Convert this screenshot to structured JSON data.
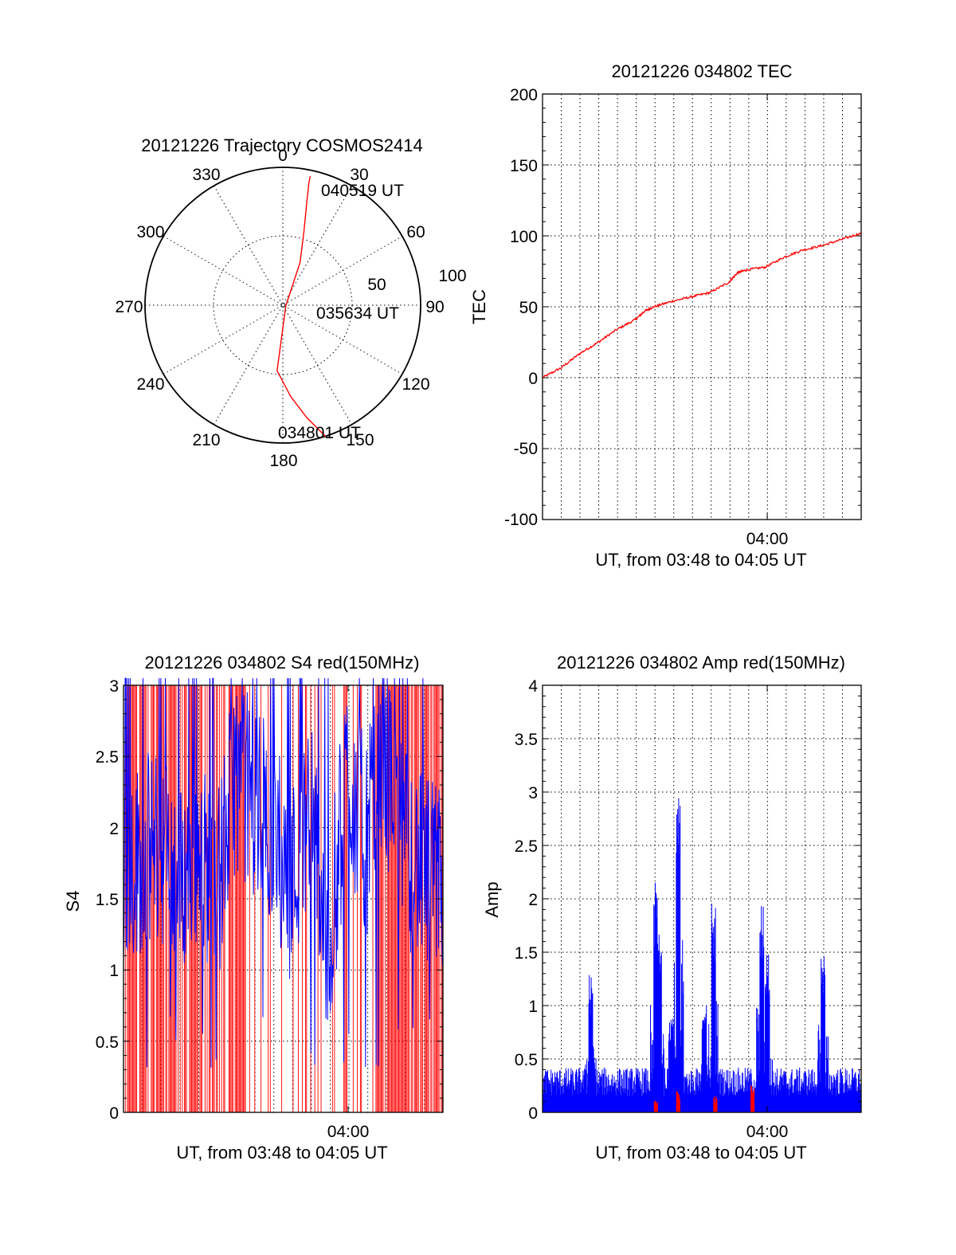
{
  "polar": {
    "title": "20121226 Trajectory COSMOS2414",
    "azimuth_labels": [
      "0",
      "30",
      "60",
      "90",
      "120",
      "150",
      "180",
      "210",
      "240",
      "270",
      "300",
      "330"
    ],
    "radial_labels": [
      "50",
      "100"
    ],
    "trajectory": {
      "color": "#ff0000",
      "points": [
        {
          "az": 162,
          "el": 0,
          "label": "034801 UT"
        },
        {
          "az": 168,
          "el": 15
        },
        {
          "az": 175,
          "el": 30
        },
        {
          "az": 185,
          "el": 47
        },
        {
          "az": 100,
          "el": 88,
          "label": "035634 UT"
        },
        {
          "az": 22,
          "el": 60
        },
        {
          "az": 16,
          "el": 40
        },
        {
          "az": 13,
          "el": 20
        },
        {
          "az": 12,
          "el": 8
        },
        {
          "az": 12,
          "el": 4,
          "label": "040519 UT"
        }
      ]
    }
  },
  "tec": {
    "title": "20121226 034802 TEC",
    "ylabel": "TEC",
    "xlabel": "UT, from 03:48 to 04:05 UT",
    "xtick_label": "04:00",
    "yticks": [
      "-100",
      "-50",
      "0",
      "50",
      "100",
      "150",
      "200"
    ]
  },
  "s4": {
    "title": "20121226 034802 S4 red(150MHz)",
    "ylabel": "S4",
    "xlabel": "UT, from 03:48 to 04:05 UT",
    "xtick_label": "04:00",
    "yticks": [
      "0",
      "0.5",
      "1",
      "1.5",
      "2",
      "2.5",
      "3"
    ]
  },
  "amp": {
    "title": "20121226 034802 Amp red(150MHz)",
    "ylabel": "Amp",
    "xlabel": "UT, from 03:48 to 04:05 UT",
    "xtick_label": "04:00",
    "yticks": [
      "0",
      "0.5",
      "1",
      "1.5",
      "2",
      "2.5",
      "3",
      "3.5",
      "4"
    ]
  },
  "chart_data": [
    {
      "type": "scatter",
      "subtype": "polar-sky-plot",
      "title": "20121226 Trajectory COSMOS2414",
      "coordinates": "azimuth (deg, clockwise from north) / elevation (deg)",
      "series": [
        {
          "color": "#ff0000",
          "azimuth": [
            162,
            168,
            175,
            185,
            100,
            22,
            16,
            13,
            12,
            12
          ],
          "elevation": [
            0,
            15,
            30,
            47,
            88,
            60,
            40,
            20,
            8,
            4
          ],
          "annotations": [
            "034801 UT",
            "035634 UT",
            "040519 UT"
          ]
        }
      ]
    },
    {
      "type": "line",
      "title": "20121226 034802 TEC",
      "xlabel": "UT, from 03:48 to 04:05 UT",
      "ylabel": "TEC",
      "x_unit": "minutes after 03:48 UT",
      "xlim": [
        0,
        17.15
      ],
      "ylim": [
        -100,
        200
      ],
      "xtick_label": "04:00",
      "grid": true,
      "series": [
        {
          "color": "#ff0000",
          "x": [
            0,
            1,
            2,
            3,
            4,
            5,
            5.5,
            6,
            7,
            8,
            9,
            10,
            10.5,
            11,
            12,
            13,
            14,
            15,
            16,
            17.15
          ],
          "values": [
            0,
            7,
            17,
            25,
            34,
            41,
            47,
            50,
            54,
            57,
            60,
            67,
            74,
            76,
            78,
            85,
            90,
            93,
            97,
            102
          ]
        }
      ]
    },
    {
      "type": "line",
      "title": "20121226 034802 S4 red(150MHz)",
      "xlabel": "UT, from 03:48 to 04:05 UT",
      "ylabel": "S4",
      "xlim": [
        0,
        17.15
      ],
      "ylim": [
        0,
        3
      ],
      "xtick_label": "04:00",
      "grid": true,
      "series": [
        {
          "color": "#0000ff",
          "x": [
            0,
            1,
            2,
            3,
            4,
            5,
            6,
            7,
            8,
            9,
            10,
            11,
            12,
            13,
            14,
            15,
            16,
            17
          ],
          "values": [
            1.7,
            1.8,
            1.9,
            1.6,
            1.9,
            1.5,
            2.4,
            2.2,
            2.0,
            1.6,
            2.2,
            1.1,
            2.4,
            1.9,
            2.5,
            1.9,
            1.7,
            1.6
          ]
        },
        {
          "color": "#ff0000",
          "note": "dense vertical strokes spanning 0 to 3"
        }
      ]
    },
    {
      "type": "line",
      "title": "20121226 034802 Amp red(150MHz)",
      "xlabel": "UT, from 03:48 to 04:05 UT",
      "ylabel": "Amp",
      "xlim": [
        0,
        17.15
      ],
      "ylim": [
        0,
        4
      ],
      "xtick_label": "04:00",
      "grid": true,
      "series": [
        {
          "color": "#0000ff",
          "peaks": [
            {
              "x": 2.6,
              "y": 1.3
            },
            {
              "x": 6.1,
              "y": 2.15
            },
            {
              "x": 6.3,
              "y": 1.7
            },
            {
              "x": 6.9,
              "y": 0.95
            },
            {
              "x": 7.3,
              "y": 2.95
            },
            {
              "x": 8.7,
              "y": 1.0
            },
            {
              "x": 9.2,
              "y": 2.0
            },
            {
              "x": 11.8,
              "y": 1.95
            },
            {
              "x": 12.1,
              "y": 1.5
            },
            {
              "x": 15.1,
              "y": 1.5
            }
          ],
          "baseline": 0.3
        },
        {
          "color": "#ff0000",
          "peaks": [
            {
              "x": 6.1,
              "y": 0.12
            },
            {
              "x": 7.3,
              "y": 0.2
            },
            {
              "x": 9.3,
              "y": 0.15
            },
            {
              "x": 11.3,
              "y": 0.3
            }
          ]
        }
      ]
    }
  ]
}
